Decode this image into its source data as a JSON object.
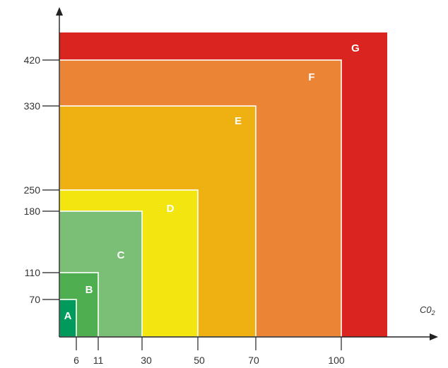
{
  "zones": [
    {
      "letter": "G",
      "color": "#D9241F"
    },
    {
      "letter": "F",
      "color": "#EC8436"
    },
    {
      "letter": "E",
      "color": "#EFB112"
    },
    {
      "letter": "D",
      "color": "#F3E510"
    },
    {
      "letter": "C",
      "color": "#7BBE76"
    },
    {
      "letter": "B",
      "color": "#4FAE50"
    },
    {
      "letter": "A",
      "color": "#009A5C"
    }
  ],
  "x_axis": {
    "label_main": "C0",
    "label_sub": "2",
    "ticks": [
      "6",
      "11",
      "30",
      "50",
      "70",
      "100"
    ]
  },
  "y_axis": {
    "ticks": [
      "70",
      "110",
      "180",
      "250",
      "330",
      "420"
    ]
  }
}
